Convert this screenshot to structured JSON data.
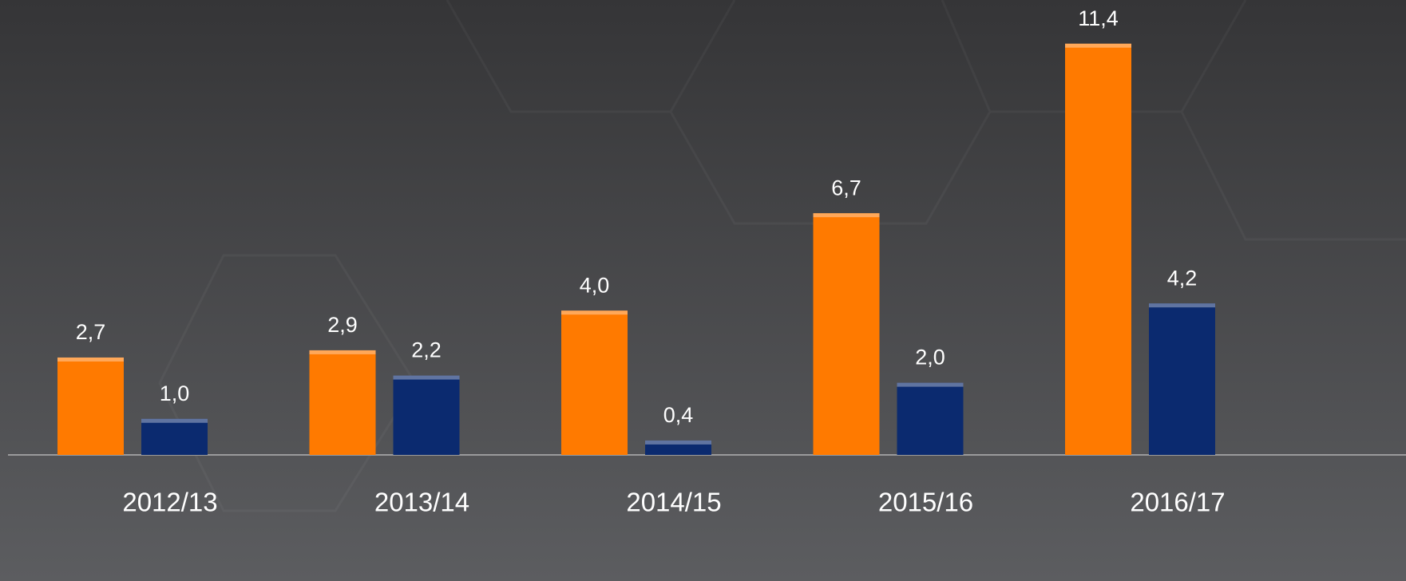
{
  "chart_data": {
    "type": "bar",
    "categories": [
      "2012/13",
      "2013/14",
      "2014/15",
      "2015/16",
      "2016/17"
    ],
    "series": [
      {
        "color": "#ff7a00",
        "values": [
          2.7,
          2.9,
          4.0,
          6.7,
          11.4
        ],
        "value_labels": [
          "2,7",
          "2,9",
          "4,0",
          "6,7",
          "11,4"
        ]
      },
      {
        "color": "#0b2a6f",
        "values": [
          1.0,
          2.2,
          0.4,
          2.0,
          4.2
        ],
        "value_labels": [
          "1,0",
          "2,2",
          "0,4",
          "2,0",
          "4,2"
        ]
      }
    ]
  }
}
